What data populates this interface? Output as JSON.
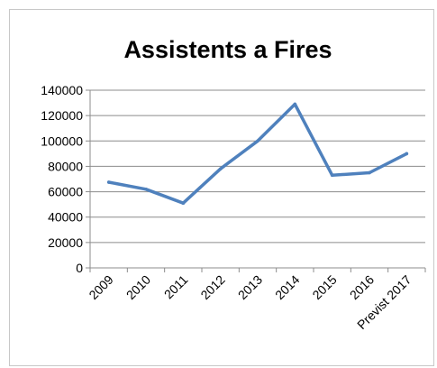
{
  "chart_data": {
    "type": "line",
    "title": "Assistents a Fires",
    "xlabel": "",
    "ylabel": "",
    "categories": [
      "2009",
      "2010",
      "2011",
      "2012",
      "2013",
      "2014",
      "2015",
      "2016",
      "Previst 2017"
    ],
    "series": [
      {
        "values": [
          67500,
          62000,
          51000,
          78000,
          100000,
          129000,
          73000,
          75000,
          90000
        ],
        "color": "#4f81bd"
      }
    ],
    "ylim": [
      0,
      140000
    ],
    "yticks": [
      0,
      20000,
      40000,
      60000,
      80000,
      100000,
      120000,
      140000
    ],
    "grid": true,
    "legend": "none"
  }
}
